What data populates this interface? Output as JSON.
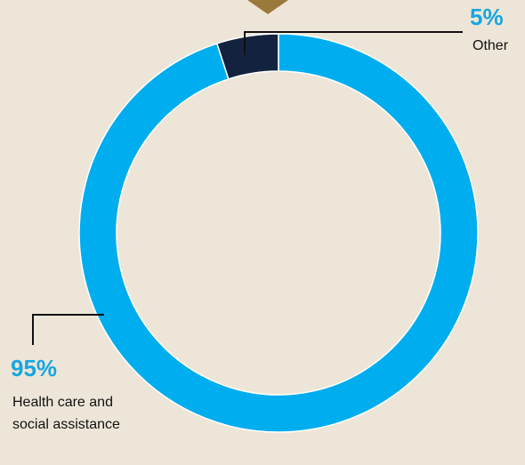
{
  "colors": {
    "background": "#ede6d8",
    "accent": "#9a7a3a",
    "label_pct": "#16a7e0",
    "leader": "#111111"
  },
  "chart_data": {
    "type": "pie",
    "variant": "donut",
    "title": "",
    "slices": [
      {
        "label": "Other",
        "value": 5,
        "display": "5%",
        "color": "#13233f"
      },
      {
        "label": "Health care and social assistance",
        "value": 95,
        "display": "95%",
        "color": "#00adee"
      }
    ],
    "legend": "none",
    "grid": false
  }
}
